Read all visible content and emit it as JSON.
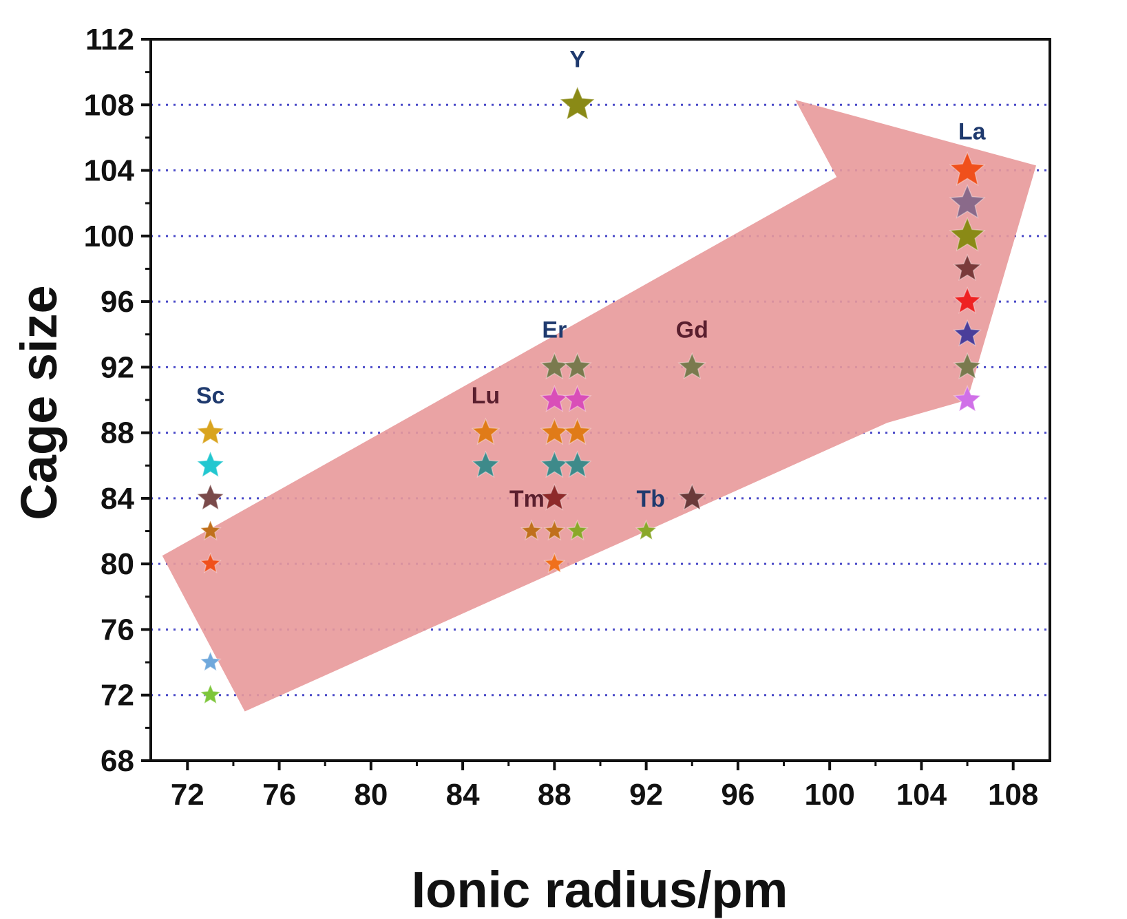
{
  "chart_data": {
    "type": "scatter",
    "title": "",
    "xlabel": "Ionic radius/pm",
    "ylabel": "Cage size",
    "xlim": [
      70.4,
      109.6
    ],
    "ylim": [
      68,
      112
    ],
    "xticks": [
      72,
      76,
      80,
      84,
      88,
      92,
      96,
      100,
      104,
      108
    ],
    "yticks": [
      68,
      72,
      76,
      80,
      84,
      88,
      92,
      96,
      100,
      104,
      108,
      112
    ],
    "grid": "horizontal dotted",
    "trend_arrow": {
      "color": "#E8999A",
      "points": [
        [
          70.9,
          80.5
        ],
        [
          74.5,
          71.0
        ],
        [
          102.5,
          88.6
        ],
        [
          106.0,
          90.0
        ],
        [
          109.0,
          104.3
        ],
        [
          98.5,
          108.3
        ],
        [
          100.3,
          103.6
        ]
      ]
    },
    "labels": [
      {
        "text": "Sc",
        "x": 73,
        "y": 89.8,
        "color": "#1F3A6E"
      },
      {
        "text": "Y",
        "x": 89,
        "y": 110.3,
        "color": "#1F3A6E"
      },
      {
        "text": "Lu",
        "x": 85,
        "y": 89.8,
        "color": "#5A1F2E"
      },
      {
        "text": "Er",
        "x": 88,
        "y": 93.8,
        "color": "#1F3A6E"
      },
      {
        "text": "Gd",
        "x": 94,
        "y": 93.8,
        "color": "#5A1F2E"
      },
      {
        "text": "Tm",
        "x": 86.8,
        "y": 83.5,
        "color": "#5A1F2E"
      },
      {
        "text": "Tb",
        "x": 92.2,
        "y": 83.5,
        "color": "#1F3A6E"
      },
      {
        "text": "La",
        "x": 106.2,
        "y": 105.9,
        "color": "#1F3A6E"
      }
    ],
    "points": [
      {
        "element": "Sc",
        "x": 73,
        "y": 88,
        "color": "#D9A41F",
        "size": 1.0
      },
      {
        "element": "Sc",
        "x": 73,
        "y": 86,
        "color": "#22C7D0",
        "size": 1.0
      },
      {
        "element": "Sc",
        "x": 73,
        "y": 84,
        "color": "#7A4A4A",
        "size": 1.0
      },
      {
        "element": "Sc",
        "x": 73,
        "y": 82,
        "color": "#C0701C",
        "size": 0.75
      },
      {
        "element": "Sc",
        "x": 73,
        "y": 80,
        "color": "#F0501C",
        "size": 0.75
      },
      {
        "element": "Sc",
        "x": 73,
        "y": 74,
        "color": "#6FA8DC",
        "size": 0.75
      },
      {
        "element": "Sc",
        "x": 73,
        "y": 72,
        "color": "#7DC63A",
        "size": 0.75
      },
      {
        "element": "Y",
        "x": 89,
        "y": 108,
        "color": "#8A8A16",
        "size": 1.3
      },
      {
        "element": "Lu",
        "x": 85,
        "y": 88,
        "color": "#E07B18",
        "size": 1.0
      },
      {
        "element": "Lu",
        "x": 85,
        "y": 86,
        "color": "#3E8A8A",
        "size": 1.0
      },
      {
        "element": "Er",
        "x": 88,
        "y": 92,
        "color": "#7A7A4E",
        "size": 1.0
      },
      {
        "element": "Er",
        "x": 89,
        "y": 92,
        "color": "#7A7A4E",
        "size": 1.0
      },
      {
        "element": "Er",
        "x": 88,
        "y": 90,
        "color": "#D94FB8",
        "size": 1.0
      },
      {
        "element": "Er",
        "x": 89,
        "y": 90,
        "color": "#D94FB8",
        "size": 1.0
      },
      {
        "element": "Er",
        "x": 88,
        "y": 88,
        "color": "#E07B18",
        "size": 1.0
      },
      {
        "element": "Er",
        "x": 89,
        "y": 88,
        "color": "#E07B18",
        "size": 1.0
      },
      {
        "element": "Er",
        "x": 88,
        "y": 86,
        "color": "#3E8A8A",
        "size": 1.0
      },
      {
        "element": "Er",
        "x": 89,
        "y": 86,
        "color": "#3E8A8A",
        "size": 1.0
      },
      {
        "element": "Er",
        "x": 88,
        "y": 84,
        "color": "#8E2A2A",
        "size": 1.0
      },
      {
        "element": "Tm",
        "x": 87,
        "y": 82,
        "color": "#C0701C",
        "size": 0.75
      },
      {
        "element": "Er",
        "x": 88,
        "y": 82,
        "color": "#C0701C",
        "size": 0.75
      },
      {
        "element": "Er",
        "x": 89,
        "y": 82,
        "color": "#8AA82A",
        "size": 0.75
      },
      {
        "element": "Er",
        "x": 88,
        "y": 80,
        "color": "#F0701C",
        "size": 0.75
      },
      {
        "element": "Gd",
        "x": 94,
        "y": 92,
        "color": "#7A7A4E",
        "size": 1.0
      },
      {
        "element": "Gd",
        "x": 94,
        "y": 84,
        "color": "#6A3A3A",
        "size": 1.0
      },
      {
        "element": "Tb",
        "x": 92,
        "y": 82,
        "color": "#8AA82A",
        "size": 0.75
      },
      {
        "element": "La",
        "x": 106,
        "y": 104,
        "color": "#F0501C",
        "size": 1.3
      },
      {
        "element": "La",
        "x": 106,
        "y": 102,
        "color": "#8A6A8A",
        "size": 1.3
      },
      {
        "element": "La",
        "x": 106,
        "y": 100,
        "color": "#8A8A16",
        "size": 1.3
      },
      {
        "element": "La",
        "x": 106,
        "y": 98,
        "color": "#7A3A3A",
        "size": 1.0
      },
      {
        "element": "La",
        "x": 106,
        "y": 96,
        "color": "#EE2222",
        "size": 1.0
      },
      {
        "element": "La",
        "x": 106,
        "y": 94,
        "color": "#4A3E9A",
        "size": 1.0
      },
      {
        "element": "La",
        "x": 106,
        "y": 92,
        "color": "#7A7A4E",
        "size": 1.0
      },
      {
        "element": "La",
        "x": 106,
        "y": 90,
        "color": "#D070E8",
        "size": 1.0
      }
    ]
  }
}
